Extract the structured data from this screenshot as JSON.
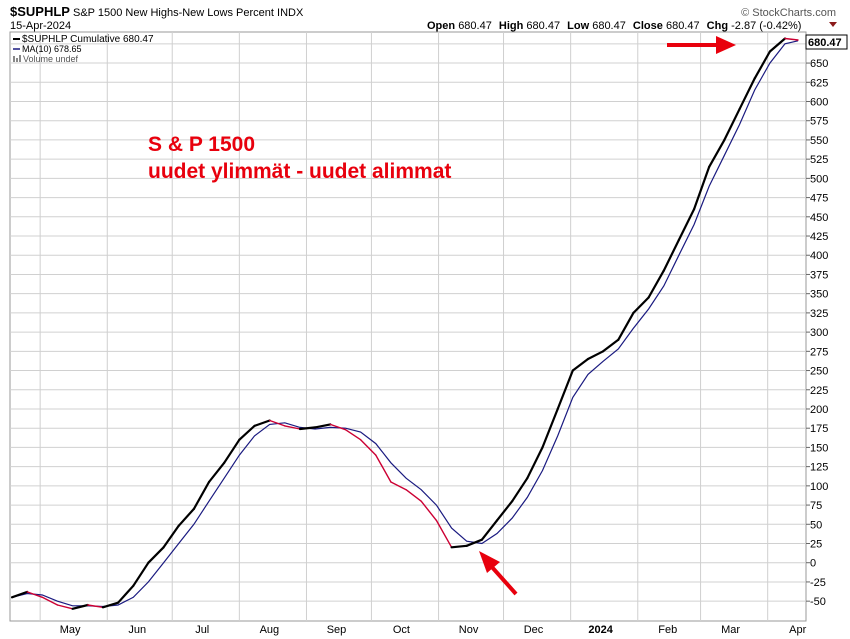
{
  "header": {
    "symbol": "$SUPHLP",
    "description": "S&P 1500 New Highs-New Lows Percent",
    "exchange": "INDX",
    "date": "15-Apr-2024",
    "source": "© StockCharts.com",
    "quote": {
      "open_label": "Open",
      "open": "680.47",
      "high_label": "High",
      "high": "680.47",
      "low_label": "Low",
      "low": "680.47",
      "close_label": "Close",
      "close": "680.47",
      "chg_label": "Chg",
      "chg": "-2.87 (-0.42%)"
    }
  },
  "legend": [
    "$SUPHLP Cumulative 680.47",
    "MA(10) 678.65",
    "Volume undef"
  ],
  "annotation": {
    "line1": "S & P 1500",
    "line2": "uudet ylimmät - uudet alimmat"
  },
  "colors": {
    "price_up": "#000000",
    "price_down": "#cc0033",
    "ma": "#1a1a80",
    "annotation": "#e8000d",
    "arrow": "#e8000d",
    "grid": "#d0d0d0"
  },
  "chart_data": {
    "type": "line",
    "title": "S&P 1500 New Highs-New Lows Percent",
    "xlabel": "",
    "ylabel": "",
    "x_ticks": [
      "May",
      "Jun",
      "Jul",
      "Aug",
      "Sep",
      "Oct",
      "Nov",
      "Dec",
      "2024",
      "Feb",
      "Mar",
      "Apr"
    ],
    "y_ticks": [
      -50,
      -25,
      0,
      25,
      50,
      75,
      100,
      125,
      150,
      175,
      200,
      225,
      250,
      275,
      300,
      325,
      350,
      375,
      400,
      425,
      450,
      475,
      500,
      525,
      550,
      575,
      600,
      625,
      650,
      675
    ],
    "ylim": [
      -60,
      695
    ],
    "last_value_label": "680.47",
    "grid": true,
    "legend_position": "top-left",
    "series": [
      {
        "name": "$SUPHLP Cumulative",
        "dates": [
          "2023-04-18",
          "2023-04-25",
          "2023-05-02",
          "2023-05-09",
          "2023-05-16",
          "2023-05-23",
          "2023-05-30",
          "2023-06-06",
          "2023-06-13",
          "2023-06-20",
          "2023-06-27",
          "2023-07-04",
          "2023-07-11",
          "2023-07-18",
          "2023-07-25",
          "2023-08-01",
          "2023-08-08",
          "2023-08-15",
          "2023-08-22",
          "2023-08-29",
          "2023-09-05",
          "2023-09-12",
          "2023-09-19",
          "2023-09-26",
          "2023-10-03",
          "2023-10-10",
          "2023-10-17",
          "2023-10-24",
          "2023-10-31",
          "2023-11-07",
          "2023-11-14",
          "2023-11-21",
          "2023-11-28",
          "2023-12-05",
          "2023-12-12",
          "2023-12-19",
          "2023-12-26",
          "2024-01-02",
          "2024-01-09",
          "2024-01-16",
          "2024-01-23",
          "2024-01-30",
          "2024-02-06",
          "2024-02-13",
          "2024-02-20",
          "2024-02-27",
          "2024-03-05",
          "2024-03-12",
          "2024-03-19",
          "2024-03-26",
          "2024-04-02",
          "2024-04-09",
          "2024-04-15"
        ],
        "values": [
          -45,
          -38,
          -45,
          -55,
          -60,
          -55,
          -58,
          -52,
          -30,
          0,
          20,
          48,
          70,
          105,
          130,
          160,
          178,
          185,
          178,
          174,
          176,
          180,
          173,
          160,
          140,
          105,
          95,
          80,
          55,
          20,
          22,
          30,
          55,
          80,
          110,
          150,
          200,
          250,
          265,
          275,
          290,
          325,
          345,
          380,
          420,
          460,
          515,
          550,
          590,
          630,
          665,
          682,
          680
        ]
      },
      {
        "name": "MA(10)",
        "dates": [
          "2023-04-18",
          "2023-04-25",
          "2023-05-02",
          "2023-05-09",
          "2023-05-16",
          "2023-05-23",
          "2023-05-30",
          "2023-06-06",
          "2023-06-13",
          "2023-06-20",
          "2023-06-27",
          "2023-07-04",
          "2023-07-11",
          "2023-07-18",
          "2023-07-25",
          "2023-08-01",
          "2023-08-08",
          "2023-08-15",
          "2023-08-22",
          "2023-08-29",
          "2023-09-05",
          "2023-09-12",
          "2023-09-19",
          "2023-09-26",
          "2023-10-03",
          "2023-10-10",
          "2023-10-17",
          "2023-10-24",
          "2023-10-31",
          "2023-11-07",
          "2023-11-14",
          "2023-11-21",
          "2023-11-28",
          "2023-12-05",
          "2023-12-12",
          "2023-12-19",
          "2023-12-26",
          "2024-01-02",
          "2024-01-09",
          "2024-01-16",
          "2024-01-23",
          "2024-01-30",
          "2024-02-06",
          "2024-02-13",
          "2024-02-20",
          "2024-02-27",
          "2024-03-05",
          "2024-03-12",
          "2024-03-19",
          "2024-03-26",
          "2024-04-02",
          "2024-04-09",
          "2024-04-15"
        ],
        "values": [
          -45,
          -40,
          -42,
          -50,
          -56,
          -56,
          -57,
          -55,
          -45,
          -25,
          0,
          25,
          50,
          80,
          110,
          140,
          165,
          180,
          182,
          176,
          174,
          176,
          175,
          170,
          155,
          130,
          110,
          95,
          75,
          45,
          28,
          25,
          38,
          58,
          85,
          120,
          165,
          215,
          245,
          262,
          278,
          305,
          330,
          360,
          400,
          440,
          490,
          530,
          570,
          615,
          650,
          675,
          679
        ]
      }
    ]
  }
}
